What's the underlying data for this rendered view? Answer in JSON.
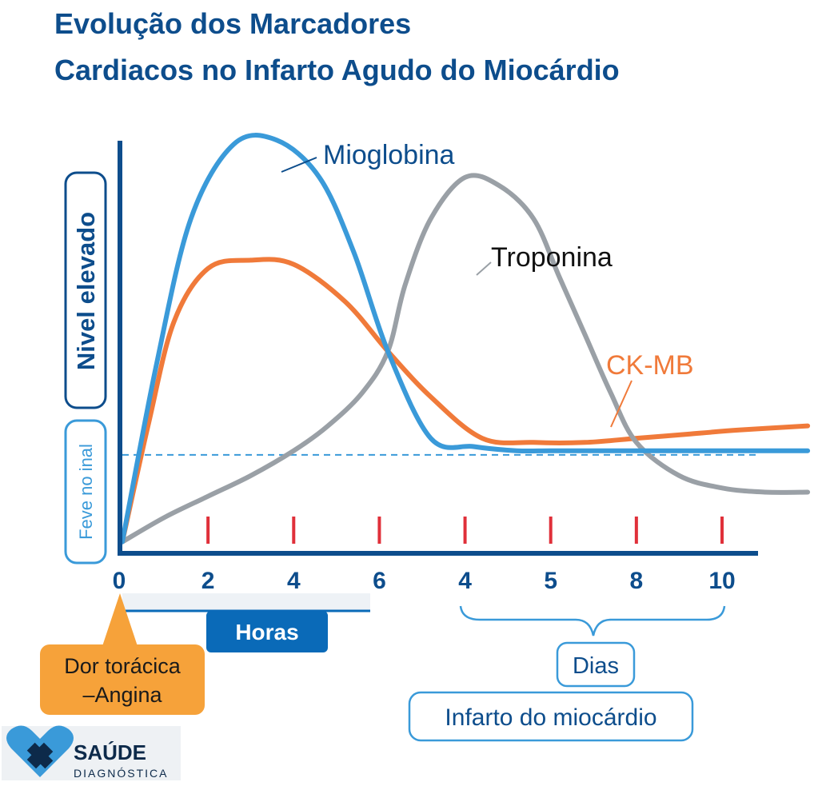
{
  "chart_data": {
    "type": "line",
    "title_lines": [
      "Evolução dos Marcadores",
      "Cardiacos no Infarto Agudo do Miocárdio"
    ],
    "ylabel_high": "Nivel elevado",
    "ylabel_low": "Feve no inal",
    "x_ticks": [
      "0",
      "2",
      "4",
      "6",
      "4",
      "5",
      "8",
      "10"
    ],
    "x_group_hours": "Horas",
    "x_group_days": "Dias",
    "baseline": 0.23,
    "ylim": [
      0,
      1
    ],
    "series": [
      {
        "name": "Mioglobina",
        "color": "#3a9ad9",
        "x": [
          0,
          0.4,
          0.8,
          1.3,
          1.8,
          2.3,
          2.7,
          3.1,
          3.6,
          4.1,
          4.6,
          5.0,
          5.5,
          6.0,
          6.5,
          7.0,
          7.5,
          8.0
        ],
        "y": [
          0.02,
          0.45,
          0.8,
          0.98,
          0.99,
          0.9,
          0.72,
          0.48,
          0.27,
          0.25,
          0.24,
          0.24,
          0.24,
          0.24,
          0.24,
          0.24,
          0.24,
          0.24
        ]
      },
      {
        "name": "CK-MB",
        "color": "#f07a3a",
        "x": [
          0,
          0.3,
          0.6,
          1.0,
          1.5,
          2.0,
          2.6,
          3.1,
          3.6,
          4.2,
          4.8,
          5.4,
          6.0,
          6.6,
          7.2,
          8.0
        ],
        "y": [
          0.02,
          0.3,
          0.55,
          0.68,
          0.7,
          0.69,
          0.6,
          0.48,
          0.37,
          0.27,
          0.26,
          0.26,
          0.27,
          0.28,
          0.29,
          0.3
        ]
      },
      {
        "name": "Troponina",
        "color": "#9aa0a6",
        "x": [
          0,
          0.5,
          1.0,
          1.5,
          2.0,
          2.4,
          2.8,
          3.1,
          3.3,
          3.6,
          4.0,
          4.4,
          4.8,
          5.1,
          5.4,
          5.7,
          6.0,
          6.5,
          7.0,
          7.5,
          8.0
        ],
        "y": [
          0.02,
          0.08,
          0.13,
          0.18,
          0.24,
          0.3,
          0.38,
          0.48,
          0.64,
          0.8,
          0.9,
          0.88,
          0.8,
          0.66,
          0.52,
          0.38,
          0.26,
          0.18,
          0.15,
          0.14,
          0.14
        ]
      }
    ],
    "legend_position": "inline-labels"
  },
  "annotations": {
    "start_event_lines": [
      "Dor torácica",
      "–Angina"
    ],
    "days_box": "Infarto do miocárdio"
  },
  "brand": {
    "name": "SAÚDE",
    "subtitle": "DIAGNÓSTICA"
  },
  "colors": {
    "title": "#0d4d8c",
    "axis": "#0d4d8c",
    "tick": "#e0303a",
    "hours_bar": "#0a6ab8",
    "start_box": "#f6a23a",
    "baseline": "#3a9ad9"
  }
}
